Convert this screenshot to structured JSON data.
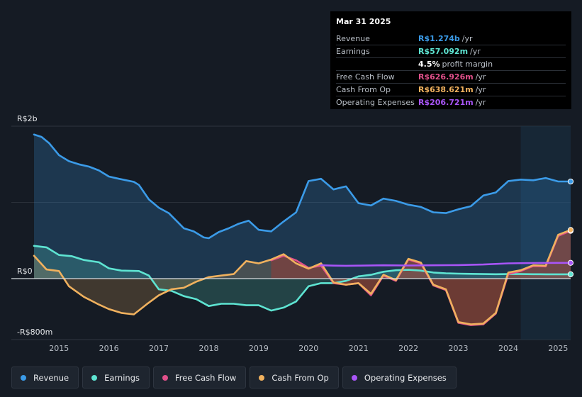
{
  "tooltip": {
    "date": "Mar 31 2025",
    "rows": [
      {
        "label": "Revenue",
        "value": "R$1.274b",
        "unit": "/yr",
        "color": "#3b9be8"
      },
      {
        "label": "Earnings",
        "value": "R$57.092m",
        "unit": "/yr",
        "color": "#5ee4d2"
      },
      {
        "label": "",
        "value": "4.5%",
        "unit": "profit margin",
        "color": "#ffffff"
      },
      {
        "label": "Free Cash Flow",
        "value": "R$626.926m",
        "unit": "/yr",
        "color": "#e0508a"
      },
      {
        "label": "Cash From Op",
        "value": "R$638.621m",
        "unit": "/yr",
        "color": "#f0b15e"
      },
      {
        "label": "Operating Expenses",
        "value": "R$206.721m",
        "unit": "/yr",
        "color": "#a855f7"
      }
    ]
  },
  "legend": [
    {
      "label": "Revenue",
      "color": "#3b9be8"
    },
    {
      "label": "Earnings",
      "color": "#5ee4d2"
    },
    {
      "label": "Free Cash Flow",
      "color": "#e0508a"
    },
    {
      "label": "Cash From Op",
      "color": "#f0b15e"
    },
    {
      "label": "Operating Expenses",
      "color": "#a855f7"
    }
  ],
  "chart_data": {
    "type": "line",
    "currency": "R$",
    "y_unit": "millions",
    "ylim": [
      -800,
      2000
    ],
    "y_tick_labels": [
      {
        "value": 2000,
        "label": "R$2b"
      },
      {
        "value": 0,
        "label": "R$0"
      },
      {
        "value": -800,
        "label": "-R$800m"
      }
    ],
    "xlim": [
      2014.5,
      2025.25
    ],
    "x_ticks": [
      2015,
      2016,
      2017,
      2018,
      2019,
      2020,
      2021,
      2022,
      2023,
      2024,
      2025
    ],
    "x_tick_labels": [
      "2015",
      "2016",
      "2017",
      "2018",
      "2019",
      "2020",
      "2021",
      "2022",
      "2023",
      "2024",
      "2025"
    ],
    "highlight_start": 2024.25,
    "series": [
      {
        "name": "Revenue",
        "color": "#3b9be8",
        "fill": true,
        "points": [
          [
            2014.5,
            1890
          ],
          [
            2014.65,
            1860
          ],
          [
            2014.8,
            1780
          ],
          [
            2015.0,
            1620
          ],
          [
            2015.2,
            1540
          ],
          [
            2015.4,
            1500
          ],
          [
            2015.6,
            1470
          ],
          [
            2015.8,
            1420
          ],
          [
            2016.0,
            1340
          ],
          [
            2016.2,
            1310
          ],
          [
            2016.5,
            1270
          ],
          [
            2016.6,
            1230
          ],
          [
            2016.8,
            1040
          ],
          [
            2017.0,
            930
          ],
          [
            2017.2,
            860
          ],
          [
            2017.5,
            660
          ],
          [
            2017.7,
            620
          ],
          [
            2017.9,
            540
          ],
          [
            2018.0,
            530
          ],
          [
            2018.2,
            610
          ],
          [
            2018.4,
            660
          ],
          [
            2018.6,
            720
          ],
          [
            2018.8,
            760
          ],
          [
            2019.0,
            640
          ],
          [
            2019.25,
            620
          ],
          [
            2019.5,
            750
          ],
          [
            2019.75,
            870
          ],
          [
            2020.0,
            1280
          ],
          [
            2020.25,
            1310
          ],
          [
            2020.5,
            1170
          ],
          [
            2020.75,
            1210
          ],
          [
            2021.0,
            990
          ],
          [
            2021.25,
            960
          ],
          [
            2021.5,
            1050
          ],
          [
            2021.75,
            1020
          ],
          [
            2022.0,
            970
          ],
          [
            2022.25,
            940
          ],
          [
            2022.5,
            870
          ],
          [
            2022.75,
            860
          ],
          [
            2023.0,
            910
          ],
          [
            2023.25,
            950
          ],
          [
            2023.5,
            1090
          ],
          [
            2023.75,
            1130
          ],
          [
            2024.0,
            1280
          ],
          [
            2024.25,
            1300
          ],
          [
            2024.5,
            1290
          ],
          [
            2024.75,
            1320
          ],
          [
            2025.0,
            1274
          ],
          [
            2025.25,
            1274
          ]
        ]
      },
      {
        "name": "Earnings",
        "color": "#5ee4d2",
        "fill": true,
        "points": [
          [
            2014.5,
            430
          ],
          [
            2014.75,
            410
          ],
          [
            2015.0,
            310
          ],
          [
            2015.25,
            295
          ],
          [
            2015.5,
            245
          ],
          [
            2015.8,
            215
          ],
          [
            2016.0,
            135
          ],
          [
            2016.25,
            105
          ],
          [
            2016.6,
            100
          ],
          [
            2016.8,
            40
          ],
          [
            2017.0,
            -140
          ],
          [
            2017.25,
            -160
          ],
          [
            2017.5,
            -230
          ],
          [
            2017.75,
            -270
          ],
          [
            2018.0,
            -360
          ],
          [
            2018.25,
            -330
          ],
          [
            2018.5,
            -330
          ],
          [
            2018.75,
            -350
          ],
          [
            2019.0,
            -350
          ],
          [
            2019.25,
            -420
          ],
          [
            2019.5,
            -380
          ],
          [
            2019.75,
            -300
          ],
          [
            2020.0,
            -100
          ],
          [
            2020.25,
            -60
          ],
          [
            2020.5,
            -60
          ],
          [
            2020.75,
            -30
          ],
          [
            2021.0,
            30
          ],
          [
            2021.25,
            50
          ],
          [
            2021.5,
            90
          ],
          [
            2021.75,
            110
          ],
          [
            2022.0,
            115
          ],
          [
            2022.25,
            105
          ],
          [
            2022.5,
            80
          ],
          [
            2022.75,
            70
          ],
          [
            2023.0,
            65
          ],
          [
            2023.25,
            62
          ],
          [
            2023.5,
            60
          ],
          [
            2023.75,
            58
          ],
          [
            2024.0,
            60
          ],
          [
            2024.25,
            60
          ],
          [
            2024.5,
            58
          ],
          [
            2024.75,
            57
          ],
          [
            2025.0,
            57.092
          ],
          [
            2025.25,
            57.092
          ]
        ]
      },
      {
        "name": "Free Cash Flow",
        "color": "#e0508a",
        "fill": true,
        "points": [
          [
            2019.25,
            240
          ],
          [
            2019.5,
            300
          ],
          [
            2019.75,
            240
          ],
          [
            2020.0,
            140
          ],
          [
            2020.25,
            170
          ],
          [
            2020.5,
            -60
          ],
          [
            2020.75,
            -80
          ],
          [
            2021.0,
            -60
          ],
          [
            2021.25,
            -220
          ],
          [
            2021.5,
            40
          ],
          [
            2021.75,
            -30
          ],
          [
            2022.0,
            250
          ],
          [
            2022.25,
            200
          ],
          [
            2022.5,
            -90
          ],
          [
            2022.75,
            -150
          ],
          [
            2023.0,
            -580
          ],
          [
            2023.25,
            -610
          ],
          [
            2023.5,
            -600
          ],
          [
            2023.75,
            -460
          ],
          [
            2024.0,
            60
          ],
          [
            2024.25,
            100
          ],
          [
            2024.5,
            165
          ],
          [
            2024.75,
            160
          ],
          [
            2025.0,
            560
          ],
          [
            2025.25,
            626.926
          ]
        ]
      },
      {
        "name": "Cash From Op",
        "color": "#f0b15e",
        "fill": true,
        "points": [
          [
            2014.5,
            300
          ],
          [
            2014.75,
            120
          ],
          [
            2015.0,
            100
          ],
          [
            2015.2,
            -100
          ],
          [
            2015.5,
            -240
          ],
          [
            2015.8,
            -340
          ],
          [
            2016.0,
            -400
          ],
          [
            2016.25,
            -450
          ],
          [
            2016.5,
            -470
          ],
          [
            2016.75,
            -340
          ],
          [
            2017.0,
            -220
          ],
          [
            2017.25,
            -140
          ],
          [
            2017.5,
            -120
          ],
          [
            2017.75,
            -40
          ],
          [
            2018.0,
            20
          ],
          [
            2018.25,
            40
          ],
          [
            2018.5,
            60
          ],
          [
            2018.75,
            230
          ],
          [
            2019.0,
            200
          ],
          [
            2019.25,
            250
          ],
          [
            2019.5,
            320
          ],
          [
            2019.75,
            200
          ],
          [
            2020.0,
            130
          ],
          [
            2020.25,
            200
          ],
          [
            2020.5,
            -50
          ],
          [
            2020.75,
            -80
          ],
          [
            2021.0,
            -60
          ],
          [
            2021.25,
            -200
          ],
          [
            2021.5,
            50
          ],
          [
            2021.75,
            -20
          ],
          [
            2022.0,
            260
          ],
          [
            2022.25,
            210
          ],
          [
            2022.5,
            -80
          ],
          [
            2022.75,
            -140
          ],
          [
            2023.0,
            -570
          ],
          [
            2023.25,
            -600
          ],
          [
            2023.5,
            -590
          ],
          [
            2023.75,
            -450
          ],
          [
            2024.0,
            80
          ],
          [
            2024.25,
            110
          ],
          [
            2024.5,
            175
          ],
          [
            2024.75,
            170
          ],
          [
            2025.0,
            575
          ],
          [
            2025.25,
            638.621
          ]
        ]
      },
      {
        "name": "Operating Expenses",
        "color": "#a855f7",
        "fill": false,
        "points": [
          [
            2020.25,
            175
          ],
          [
            2020.5,
            170
          ],
          [
            2020.75,
            168
          ],
          [
            2021.0,
            170
          ],
          [
            2021.5,
            175
          ],
          [
            2022.0,
            172
          ],
          [
            2022.5,
            175
          ],
          [
            2023.0,
            178
          ],
          [
            2023.5,
            185
          ],
          [
            2024.0,
            200
          ],
          [
            2024.5,
            205
          ],
          [
            2025.0,
            206.721
          ],
          [
            2025.25,
            206.721
          ]
        ]
      }
    ]
  }
}
